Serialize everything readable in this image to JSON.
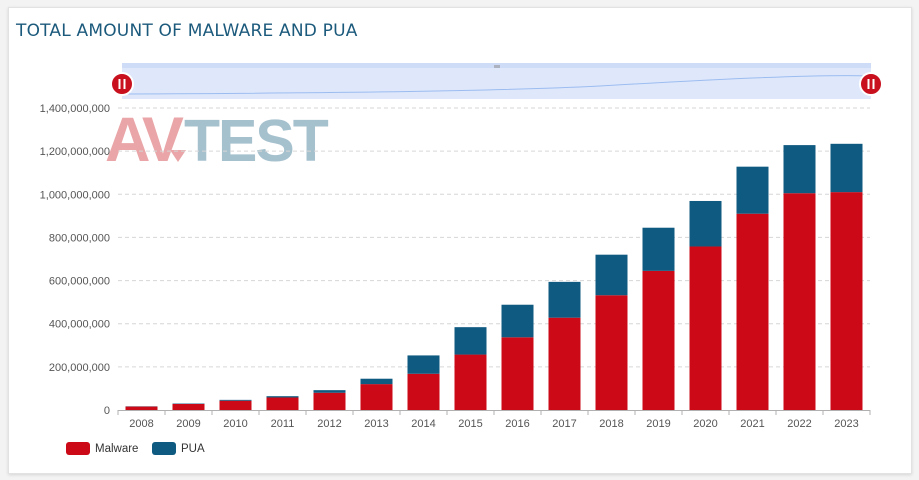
{
  "page": {
    "title": "TOTAL AMOUNT OF MALWARE AND PUA"
  },
  "logo": {
    "part1": "AV",
    "part2": "TEST"
  },
  "navigator": {
    "handle_start_icon": "pause-icon",
    "handle_end_icon": "pause-icon",
    "grip_icon": "grip-icon"
  },
  "chart_data": {
    "type": "bar",
    "stacked": true,
    "categories": [
      "2008",
      "2009",
      "2010",
      "2011",
      "2012",
      "2013",
      "2014",
      "2015",
      "2016",
      "2017",
      "2018",
      "2019",
      "2020",
      "2021",
      "2022",
      "2023"
    ],
    "series": [
      {
        "name": "Malware",
        "color": "#cc0a17",
        "values": [
          16000000,
          28000000,
          43000000,
          58000000,
          80000000,
          120000000,
          168000000,
          257000000,
          337000000,
          428000000,
          532000000,
          645000000,
          758000000,
          910000000,
          1005000000,
          1010000000
        ]
      },
      {
        "name": "PUA",
        "color": "#0f5a80",
        "values": [
          1000000,
          2000000,
          4000000,
          6000000,
          12000000,
          25000000,
          85000000,
          127000000,
          151000000,
          166000000,
          188000000,
          200000000,
          211000000,
          218000000,
          223000000,
          224000000
        ]
      }
    ],
    "ylim": [
      0,
      1400000000
    ],
    "yticks": [
      "0",
      "200,000,000",
      "400,000,000",
      "600,000,000",
      "800,000,000",
      "1,000,000,000",
      "1,200,000,000",
      "1,400,000,000"
    ],
    "ytick_values": [
      0,
      200000000,
      400000000,
      600000000,
      800000000,
      1000000000,
      1200000000,
      1400000000
    ],
    "grid": true,
    "legend_position": "bottom-left",
    "navigator_colors": {
      "fill": "#dfe8fb",
      "line": "#9cbcf0",
      "handle": "#c8101e"
    }
  }
}
